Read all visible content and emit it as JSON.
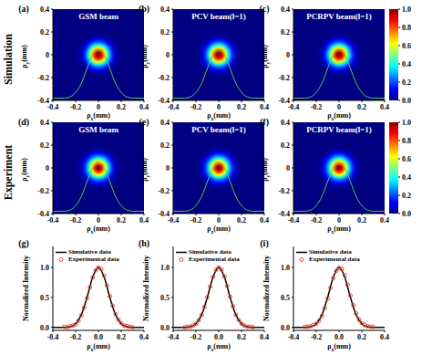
{
  "row_labels": [
    "Simulation",
    "Experiment"
  ],
  "chart_data": [
    {
      "type": "heatmap",
      "panel": "(a)",
      "title": "GSM beam",
      "x_label": "ρx(mm)",
      "y_label": "ρy(mm)",
      "xlim": [
        -0.4,
        0.4
      ],
      "ylim": [
        -0.4,
        0.4
      ],
      "xticks": [
        -0.4,
        -0.2,
        0,
        0.2,
        0.4
      ],
      "yticks": [
        -0.4,
        -0.2,
        0,
        0.2,
        0.4
      ],
      "center": [
        0,
        0
      ],
      "intensity": {
        "r": [
          0,
          0.02,
          0.04,
          0.06,
          0.08,
          0.1,
          0.12,
          0.14,
          0.16,
          0.2
        ],
        "values": [
          1,
          0.95,
          0.82,
          0.64,
          0.45,
          0.29,
          0.17,
          0.09,
          0.04,
          0
        ]
      },
      "profile": {
        "color": "#4fd04f",
        "x": [
          -0.4,
          -0.35,
          -0.3,
          -0.25,
          -0.2,
          -0.15,
          -0.1,
          -0.05,
          0,
          0.05,
          0.1,
          0.15,
          0.2,
          0.25,
          0.3,
          0.35,
          0.4
        ],
        "y": [
          -0.38,
          -0.38,
          -0.38,
          -0.37,
          -0.33,
          -0.25,
          -0.12,
          0.0,
          0.04,
          0.0,
          -0.12,
          -0.25,
          -0.33,
          -0.37,
          -0.38,
          -0.38,
          -0.38
        ]
      }
    },
    {
      "type": "heatmap",
      "panel": "(b)",
      "title": "PCV beam(l=1)",
      "x_label": "ρx(mm)",
      "y_label": "ρy(mm)",
      "xlim": [
        -0.4,
        0.4
      ],
      "ylim": [
        -0.4,
        0.4
      ],
      "xticks": [
        -0.4,
        -0.2,
        0,
        0.2,
        0.4
      ],
      "yticks": [
        -0.4,
        -0.2,
        0,
        0.2,
        0.4
      ],
      "center": [
        0,
        0
      ],
      "intensity": {
        "r": [
          0,
          0.02,
          0.04,
          0.06,
          0.08,
          0.1,
          0.12,
          0.14,
          0.16,
          0.2
        ],
        "values": [
          1,
          0.95,
          0.82,
          0.64,
          0.45,
          0.29,
          0.17,
          0.09,
          0.04,
          0
        ]
      },
      "profile": {
        "color": "#4fd04f",
        "x": [
          -0.4,
          -0.35,
          -0.3,
          -0.25,
          -0.2,
          -0.15,
          -0.1,
          -0.05,
          0,
          0.05,
          0.1,
          0.15,
          0.2,
          0.25,
          0.3,
          0.35,
          0.4
        ],
        "y": [
          -0.38,
          -0.38,
          -0.38,
          -0.37,
          -0.33,
          -0.25,
          -0.12,
          0.0,
          0.04,
          0.0,
          -0.12,
          -0.25,
          -0.33,
          -0.37,
          -0.38,
          -0.38,
          -0.38
        ]
      }
    },
    {
      "type": "heatmap",
      "panel": "(c)",
      "title": "PCRPV beam(l=1)",
      "x_label": "ρx(mm)",
      "y_label": "ρy(mm)",
      "xlim": [
        -0.4,
        0.4
      ],
      "ylim": [
        -0.4,
        0.4
      ],
      "xticks": [
        -0.4,
        -0.2,
        0,
        0.2,
        0.4
      ],
      "yticks": [
        -0.4,
        -0.2,
        0,
        0.2,
        0.4
      ],
      "center": [
        0,
        0
      ],
      "intensity": {
        "r": [
          0,
          0.02,
          0.04,
          0.06,
          0.08,
          0.1,
          0.12,
          0.14,
          0.16,
          0.2
        ],
        "values": [
          1,
          0.95,
          0.82,
          0.64,
          0.45,
          0.29,
          0.17,
          0.09,
          0.04,
          0
        ]
      },
      "profile": {
        "color": "#4fd04f",
        "x": [
          -0.4,
          -0.35,
          -0.3,
          -0.25,
          -0.2,
          -0.15,
          -0.1,
          -0.05,
          0,
          0.05,
          0.1,
          0.15,
          0.2,
          0.25,
          0.3,
          0.35,
          0.4
        ],
        "y": [
          -0.38,
          -0.38,
          -0.38,
          -0.37,
          -0.33,
          -0.25,
          -0.12,
          0.0,
          0.04,
          0.0,
          -0.12,
          -0.25,
          -0.33,
          -0.37,
          -0.38,
          -0.38,
          -0.38
        ]
      },
      "colorbar": {
        "range": [
          0,
          1
        ],
        "ticks": [
          {
            "value": 0,
            "label": "0.0"
          },
          0.2,
          0.4,
          0.6,
          0.8,
          {
            "value": 1,
            "label": "1.0"
          }
        ]
      }
    },
    {
      "type": "heatmap",
      "panel": "(d)",
      "title": "GSM beam",
      "x_label": "ρx(mm)",
      "y_label": "ρy(mm)",
      "xlim": [
        -0.4,
        0.4
      ],
      "ylim": [
        -0.4,
        0.4
      ],
      "xticks": [
        -0.4,
        -0.2,
        0,
        0.2,
        0.4
      ],
      "yticks": [
        -0.4,
        -0.2,
        0,
        0.2,
        0.4
      ],
      "center": [
        0,
        0
      ],
      "intensity": {
        "r": [
          0,
          0.02,
          0.04,
          0.06,
          0.08,
          0.1,
          0.12,
          0.14,
          0.16,
          0.2
        ],
        "values": [
          1,
          0.94,
          0.8,
          0.62,
          0.44,
          0.28,
          0.17,
          0.09,
          0.04,
          0
        ]
      },
      "profile": {
        "color": "#4fd04f",
        "x": [
          -0.4,
          -0.35,
          -0.3,
          -0.25,
          -0.2,
          -0.15,
          -0.1,
          -0.05,
          0,
          0.05,
          0.1,
          0.15,
          0.2,
          0.25,
          0.3,
          0.35,
          0.4
        ],
        "y": [
          -0.38,
          -0.38,
          -0.38,
          -0.37,
          -0.33,
          -0.25,
          -0.12,
          0.0,
          0.04,
          0.0,
          -0.12,
          -0.25,
          -0.33,
          -0.37,
          -0.38,
          -0.38,
          -0.38
        ]
      }
    },
    {
      "type": "heatmap",
      "panel": "(e)",
      "title": "PCV beam(l=1)",
      "x_label": "ρx(mm)",
      "y_label": "ρy(mm)",
      "xlim": [
        -0.4,
        0.4
      ],
      "ylim": [
        -0.4,
        0.4
      ],
      "xticks": [
        -0.4,
        -0.2,
        0,
        0.2,
        0.4
      ],
      "yticks": [
        -0.4,
        -0.2,
        0,
        0.2,
        0.4
      ],
      "center": [
        0,
        0
      ],
      "intensity": {
        "r": [
          0,
          0.02,
          0.04,
          0.06,
          0.08,
          0.1,
          0.12,
          0.14,
          0.16,
          0.2
        ],
        "values": [
          1,
          0.94,
          0.8,
          0.62,
          0.44,
          0.28,
          0.17,
          0.09,
          0.04,
          0
        ]
      },
      "profile": {
        "color": "#4fd04f",
        "x": [
          -0.4,
          -0.35,
          -0.3,
          -0.25,
          -0.2,
          -0.15,
          -0.1,
          -0.05,
          0,
          0.05,
          0.1,
          0.15,
          0.2,
          0.25,
          0.3,
          0.35,
          0.4
        ],
        "y": [
          -0.38,
          -0.38,
          -0.38,
          -0.37,
          -0.33,
          -0.25,
          -0.12,
          0.0,
          0.04,
          0.0,
          -0.12,
          -0.25,
          -0.33,
          -0.37,
          -0.38,
          -0.38,
          -0.38
        ]
      }
    },
    {
      "type": "heatmap",
      "panel": "(f)",
      "title": "PCRPV beam(l=1)",
      "x_label": "ρx(mm)",
      "y_label": "ρy(mm)",
      "xlim": [
        -0.4,
        0.4
      ],
      "ylim": [
        -0.4,
        0.4
      ],
      "xticks": [
        -0.4,
        -0.2,
        0,
        0.2,
        0.4
      ],
      "yticks": [
        -0.4,
        -0.2,
        0,
        0.2,
        0.4
      ],
      "center": [
        0,
        0
      ],
      "intensity": {
        "r": [
          0,
          0.02,
          0.04,
          0.06,
          0.08,
          0.1,
          0.12,
          0.14,
          0.16,
          0.2
        ],
        "values": [
          1,
          0.94,
          0.8,
          0.62,
          0.44,
          0.28,
          0.17,
          0.09,
          0.04,
          0
        ]
      },
      "profile": {
        "color": "#4fd04f",
        "x": [
          -0.4,
          -0.35,
          -0.3,
          -0.25,
          -0.2,
          -0.15,
          -0.1,
          -0.05,
          0,
          0.05,
          0.1,
          0.15,
          0.2,
          0.25,
          0.3,
          0.35,
          0.4
        ],
        "y": [
          -0.38,
          -0.38,
          -0.38,
          -0.37,
          -0.33,
          -0.25,
          -0.12,
          0.0,
          0.04,
          0.0,
          -0.12,
          -0.25,
          -0.33,
          -0.37,
          -0.38,
          -0.38,
          -0.38
        ]
      },
      "colorbar": {
        "range": [
          0,
          1
        ],
        "ticks": [
          {
            "value": 0,
            "label": "0.0"
          },
          0.2,
          0.4,
          0.6,
          0.8,
          {
            "value": 1,
            "label": "1.0"
          }
        ]
      }
    },
    {
      "type": "line",
      "panel": "(g)",
      "x_label": "ρx(mm)",
      "y_label": "Normalized Intensity",
      "xlim": [
        -0.4,
        0.4
      ],
      "ylim": [
        -0.05,
        1.35
      ],
      "xticks": [
        -0.4,
        -0.2,
        {
          "value": 0,
          "label": "0.0"
        },
        0.2,
        0.4
      ],
      "yticks": [
        {
          "value": 0,
          "label": "0.0"
        },
        0.5,
        {
          "value": 1,
          "label": "1.0"
        }
      ],
      "legend": "upper left",
      "series": [
        {
          "name": "Simulative data",
          "type": "line",
          "color": "#000000",
          "x": [
            -0.4,
            -0.35,
            -0.3,
            -0.25,
            -0.2,
            -0.15,
            -0.1,
            -0.05,
            0,
            0.05,
            0.1,
            0.15,
            0.2,
            0.25,
            0.3,
            0.35,
            0.4
          ],
          "values": [
            0,
            0,
            0,
            0.01,
            0.06,
            0.21,
            0.5,
            0.84,
            1,
            0.84,
            0.5,
            0.21,
            0.06,
            0.01,
            0,
            0,
            0
          ]
        },
        {
          "name": "Experimental data",
          "type": "scatter",
          "marker": "circle",
          "color": "#e8402a",
          "x": [
            -0.3,
            -0.275,
            -0.25,
            -0.225,
            -0.2,
            -0.175,
            -0.15,
            -0.125,
            -0.1,
            -0.075,
            -0.05,
            -0.025,
            0,
            0.025,
            0.05,
            0.075,
            0.1,
            0.125,
            0.15,
            0.175,
            0.2,
            0.225,
            0.25,
            0.275,
            0.3
          ],
          "values": [
            0.01,
            0.0,
            0.02,
            0.03,
            0.05,
            0.11,
            0.2,
            0.33,
            0.49,
            0.67,
            0.83,
            0.95,
            1.0,
            0.97,
            0.86,
            0.7,
            0.52,
            0.36,
            0.22,
            0.13,
            0.07,
            0.03,
            0.02,
            0.01,
            0.0
          ]
        }
      ]
    },
    {
      "type": "line",
      "panel": "(h)",
      "x_label": "ρx(mm)",
      "y_label": "Normalized Intensity",
      "xlim": [
        -0.4,
        0.4
      ],
      "ylim": [
        -0.05,
        1.35
      ],
      "xticks": [
        -0.4,
        -0.2,
        {
          "value": 0,
          "label": "0.0"
        },
        0.2,
        0.4
      ],
      "yticks": [
        {
          "value": 0,
          "label": "0.0"
        },
        0.5,
        {
          "value": 1,
          "label": "1.0"
        }
      ],
      "legend": "upper left",
      "series": [
        {
          "name": "Simulative data",
          "type": "line",
          "color": "#000000",
          "x": [
            -0.4,
            -0.35,
            -0.3,
            -0.25,
            -0.2,
            -0.15,
            -0.1,
            -0.05,
            0,
            0.05,
            0.1,
            0.15,
            0.2,
            0.25,
            0.3,
            0.35,
            0.4
          ],
          "values": [
            0,
            0,
            0,
            0.01,
            0.06,
            0.21,
            0.5,
            0.84,
            1,
            0.84,
            0.5,
            0.21,
            0.06,
            0.01,
            0,
            0,
            0
          ]
        },
        {
          "name": "Experimental data",
          "type": "scatter",
          "marker": "circle",
          "color": "#e8402a",
          "x": [
            -0.3,
            -0.275,
            -0.25,
            -0.225,
            -0.2,
            -0.175,
            -0.15,
            -0.125,
            -0.1,
            -0.075,
            -0.05,
            -0.025,
            0,
            0.025,
            0.05,
            0.075,
            0.1,
            0.125,
            0.15,
            0.175,
            0.2,
            0.225,
            0.25,
            0.275,
            0.3
          ],
          "values": [
            0.0,
            0.01,
            0.01,
            0.03,
            0.06,
            0.12,
            0.21,
            0.34,
            0.5,
            0.68,
            0.84,
            0.96,
            1.0,
            0.96,
            0.85,
            0.69,
            0.51,
            0.35,
            0.21,
            0.12,
            0.06,
            0.03,
            0.01,
            0.01,
            0.0
          ]
        }
      ]
    },
    {
      "type": "line",
      "panel": "(i)",
      "x_label": "ρx(mm)",
      "y_label": "Normalized Intensity",
      "xlim": [
        -0.4,
        0.4
      ],
      "ylim": [
        -0.05,
        1.35
      ],
      "xticks": [
        -0.4,
        -0.2,
        {
          "value": 0,
          "label": "0.0"
        },
        0.2,
        0.4
      ],
      "yticks": [
        {
          "value": 0,
          "label": "0.0"
        },
        0.5,
        {
          "value": 1,
          "label": "1.0"
        }
      ],
      "legend": "upper left",
      "series": [
        {
          "name": "Simulative data",
          "type": "line",
          "color": "#000000",
          "x": [
            -0.4,
            -0.35,
            -0.3,
            -0.25,
            -0.2,
            -0.15,
            -0.1,
            -0.05,
            0,
            0.05,
            0.1,
            0.15,
            0.2,
            0.25,
            0.3,
            0.35,
            0.4
          ],
          "values": [
            0,
            0,
            0,
            0.01,
            0.06,
            0.21,
            0.5,
            0.84,
            1,
            0.84,
            0.5,
            0.21,
            0.06,
            0.01,
            0,
            0,
            0
          ]
        },
        {
          "name": "Experimental data",
          "type": "scatter",
          "marker": "circle",
          "color": "#e8402a",
          "x": [
            -0.3,
            -0.275,
            -0.25,
            -0.225,
            -0.2,
            -0.175,
            -0.15,
            -0.125,
            -0.1,
            -0.075,
            -0.05,
            -0.025,
            0,
            0.025,
            0.05,
            0.075,
            0.1,
            0.125,
            0.15,
            0.175,
            0.2,
            0.225,
            0.25,
            0.275,
            0.3
          ],
          "values": [
            0.01,
            0.01,
            0.02,
            0.04,
            0.06,
            0.11,
            0.19,
            0.32,
            0.48,
            0.66,
            0.82,
            0.94,
            0.99,
            0.97,
            0.87,
            0.71,
            0.53,
            0.37,
            0.23,
            0.13,
            0.07,
            0.04,
            0.02,
            0.01,
            0.01
          ]
        }
      ]
    }
  ]
}
